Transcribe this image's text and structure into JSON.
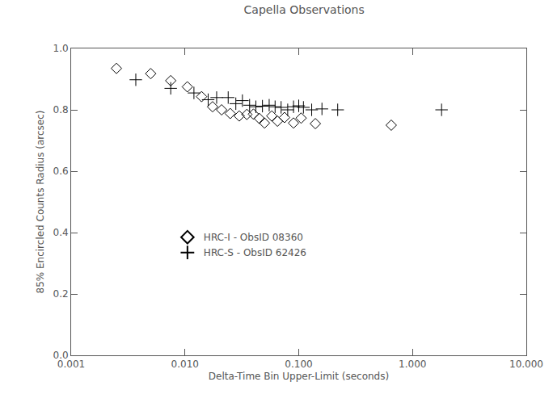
{
  "chart_data": {
    "type": "scatter",
    "title": "Capella Observations",
    "x_label": "Delta-Time Bin Upper-Limit (seconds)",
    "y_label": "85% Encircled Counts Radius (arcsec)",
    "log": "x",
    "grid": false,
    "legend": "left",
    "xlim": [
      0.001,
      10
    ],
    "ylim": [
      0,
      1.0
    ],
    "xticks": [
      0.001,
      {
        "value": 0.01,
        "label": "0.010"
      },
      {
        "value": 0.1,
        "label": "0.100"
      },
      {
        "value": 1,
        "label": "1.000"
      },
      {
        "value": 10,
        "label": "10.000"
      }
    ],
    "yticks": [
      {
        "value": 0,
        "label": "0.0"
      },
      0.2,
      0.4,
      0.6,
      0.8,
      {
        "value": 1.0,
        "label": "1.0"
      }
    ],
    "series": [
      {
        "name": "HRC-I - ObsID 08360",
        "color": "#000000",
        "marker": "diamond",
        "x": [
          0.0025,
          0.005,
          0.0075,
          0.0105,
          0.014,
          0.0175,
          0.021,
          0.025,
          0.03,
          0.035,
          0.04,
          0.045,
          0.05,
          0.058,
          0.065,
          0.075,
          0.09,
          0.105,
          0.14,
          0.65
        ],
        "values": [
          0.935,
          0.918,
          0.895,
          0.875,
          0.843,
          0.81,
          0.8,
          0.788,
          0.78,
          0.785,
          0.786,
          0.772,
          0.757,
          0.78,
          0.763,
          0.775,
          0.757,
          0.773,
          0.755,
          0.75
        ]
      },
      {
        "name": "HRC-S - ObsID 62426",
        "color": "#000000",
        "marker": "cross",
        "x": [
          0.0037,
          0.0075,
          0.012,
          0.016,
          0.019,
          0.024,
          0.028,
          0.032,
          0.037,
          0.042,
          0.048,
          0.055,
          0.062,
          0.07,
          0.08,
          0.09,
          0.1,
          0.11,
          0.13,
          0.16,
          0.22,
          1.8
        ],
        "values": [
          0.898,
          0.87,
          0.855,
          0.833,
          0.84,
          0.84,
          0.82,
          0.83,
          0.815,
          0.81,
          0.812,
          0.815,
          0.81,
          0.808,
          0.8,
          0.81,
          0.813,
          0.808,
          0.8,
          0.803,
          0.8,
          0.8
        ]
      }
    ]
  }
}
